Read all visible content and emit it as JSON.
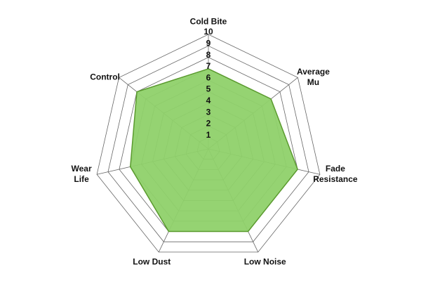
{
  "chart_data": {
    "type": "radar",
    "categories": [
      "Cold Bite",
      "Average Mu",
      "Fade Resistance",
      "Low Noise",
      "Low Dust",
      "Wear Life",
      "Control"
    ],
    "values": [
      7,
      7,
      8,
      8,
      8,
      7,
      8
    ],
    "color": "#8fd16a",
    "line_color": "#5a9a2e",
    "rlim": [
      0,
      10
    ],
    "rticks": [
      1,
      2,
      3,
      4,
      5,
      6,
      7,
      8,
      9,
      10
    ],
    "grid": true
  }
}
